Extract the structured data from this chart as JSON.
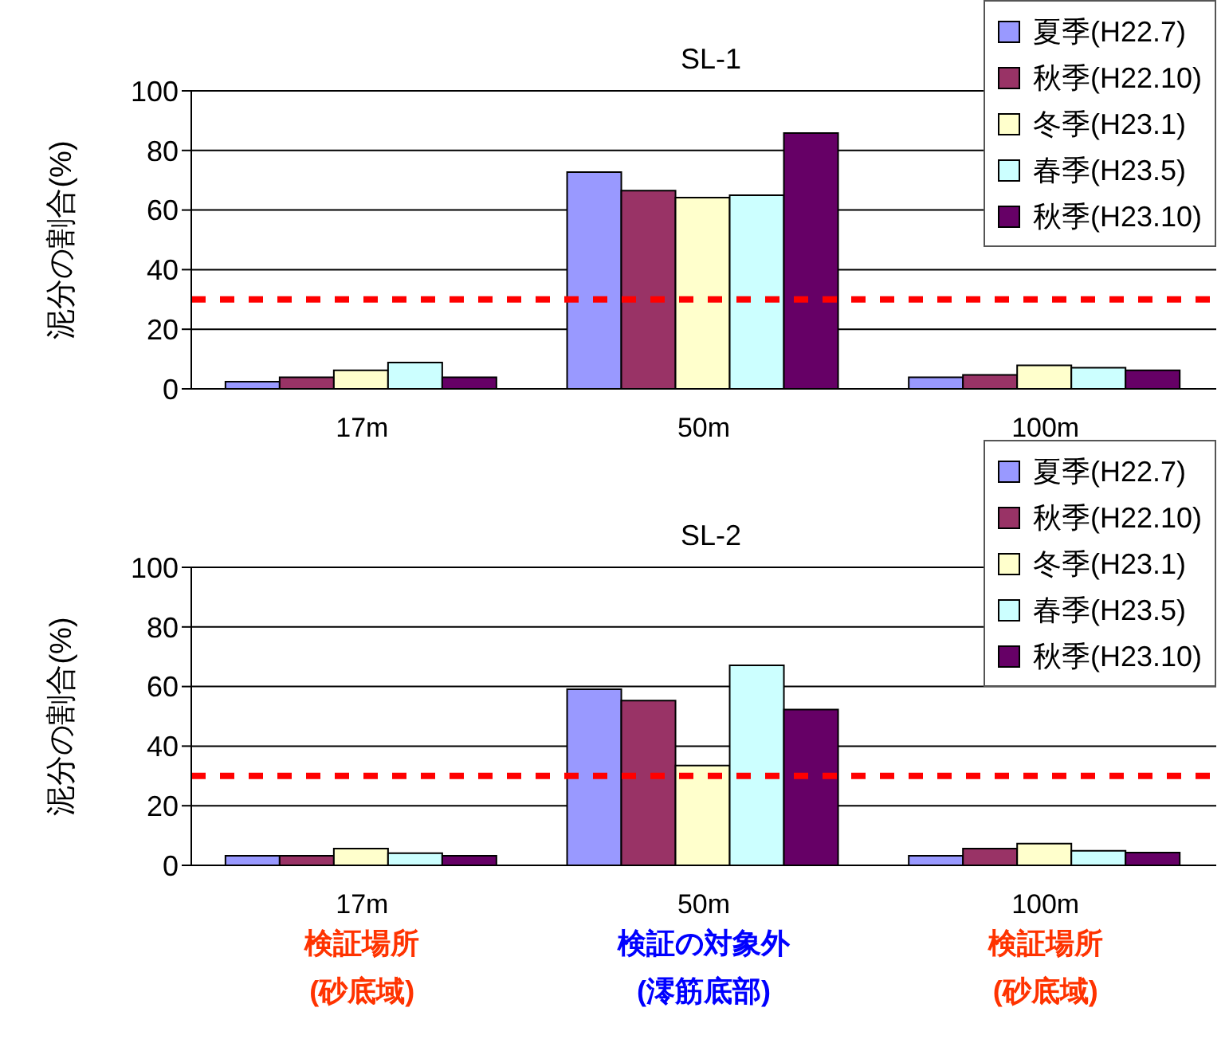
{
  "chart_data": [
    {
      "type": "bar",
      "title": "SL-1",
      "ylabel": "泥分の割合(%)",
      "categories": [
        "17m",
        "50m",
        "100m"
      ],
      "series": [
        {
          "name": "夏季(H22.7)",
          "color": "#9999ff",
          "values": [
            2.4,
            72.7,
            3.9
          ]
        },
        {
          "name": "秋季(H22.10)",
          "color": "#993366",
          "values": [
            3.9,
            66.5,
            4.7
          ]
        },
        {
          "name": "冬季(H23.1)",
          "color": "#ffffcc",
          "values": [
            6.2,
            64.2,
            7.9
          ]
        },
        {
          "name": "春季(H23.5)",
          "color": "#ccffff",
          "values": [
            8.8,
            65.0,
            7.1
          ]
        },
        {
          "name": "秋季(H23.10)",
          "color": "#660066",
          "values": [
            3.9,
            85.8,
            6.2
          ]
        }
      ],
      "ylim": [
        0,
        100
      ],
      "yticks": [
        0,
        20,
        40,
        60,
        80,
        100
      ],
      "grid": "y",
      "legend": "top right",
      "ref_lines": [
        {
          "axis": "y",
          "value": 30,
          "color": "#ff0000",
          "line_style": "dashed"
        }
      ]
    },
    {
      "type": "bar",
      "title": "SL-2",
      "ylabel": "泥分の割合(%)",
      "categories": [
        "17m",
        "50m",
        "100m"
      ],
      "series": [
        {
          "name": "夏季(H22.7)",
          "color": "#9999ff",
          "values": [
            3.2,
            59.1,
            3.2
          ]
        },
        {
          "name": "秋季(H22.10)",
          "color": "#993366",
          "values": [
            3.2,
            55.3,
            5.6
          ]
        },
        {
          "name": "冬季(H23.1)",
          "color": "#ffffcc",
          "values": [
            5.6,
            33.5,
            7.3
          ]
        },
        {
          "name": "春季(H23.5)",
          "color": "#ccffff",
          "values": [
            4.1,
            67.1,
            4.9
          ]
        },
        {
          "name": "秋季(H23.10)",
          "color": "#660066",
          "values": [
            3.2,
            52.3,
            4.3
          ]
        }
      ],
      "ylim": [
        0,
        100
      ],
      "yticks": [
        0,
        20,
        40,
        60,
        80,
        100
      ],
      "grid": "y",
      "legend": "top right",
      "ref_lines": [
        {
          "axis": "y",
          "value": 30,
          "color": "#ff0000",
          "line_style": "dashed"
        }
      ],
      "annotations": [
        "検証場所\n(砂底域)",
        "検証の対象外\n(澪筋底部)",
        "検証場所\n(砂底域)"
      ]
    }
  ]
}
